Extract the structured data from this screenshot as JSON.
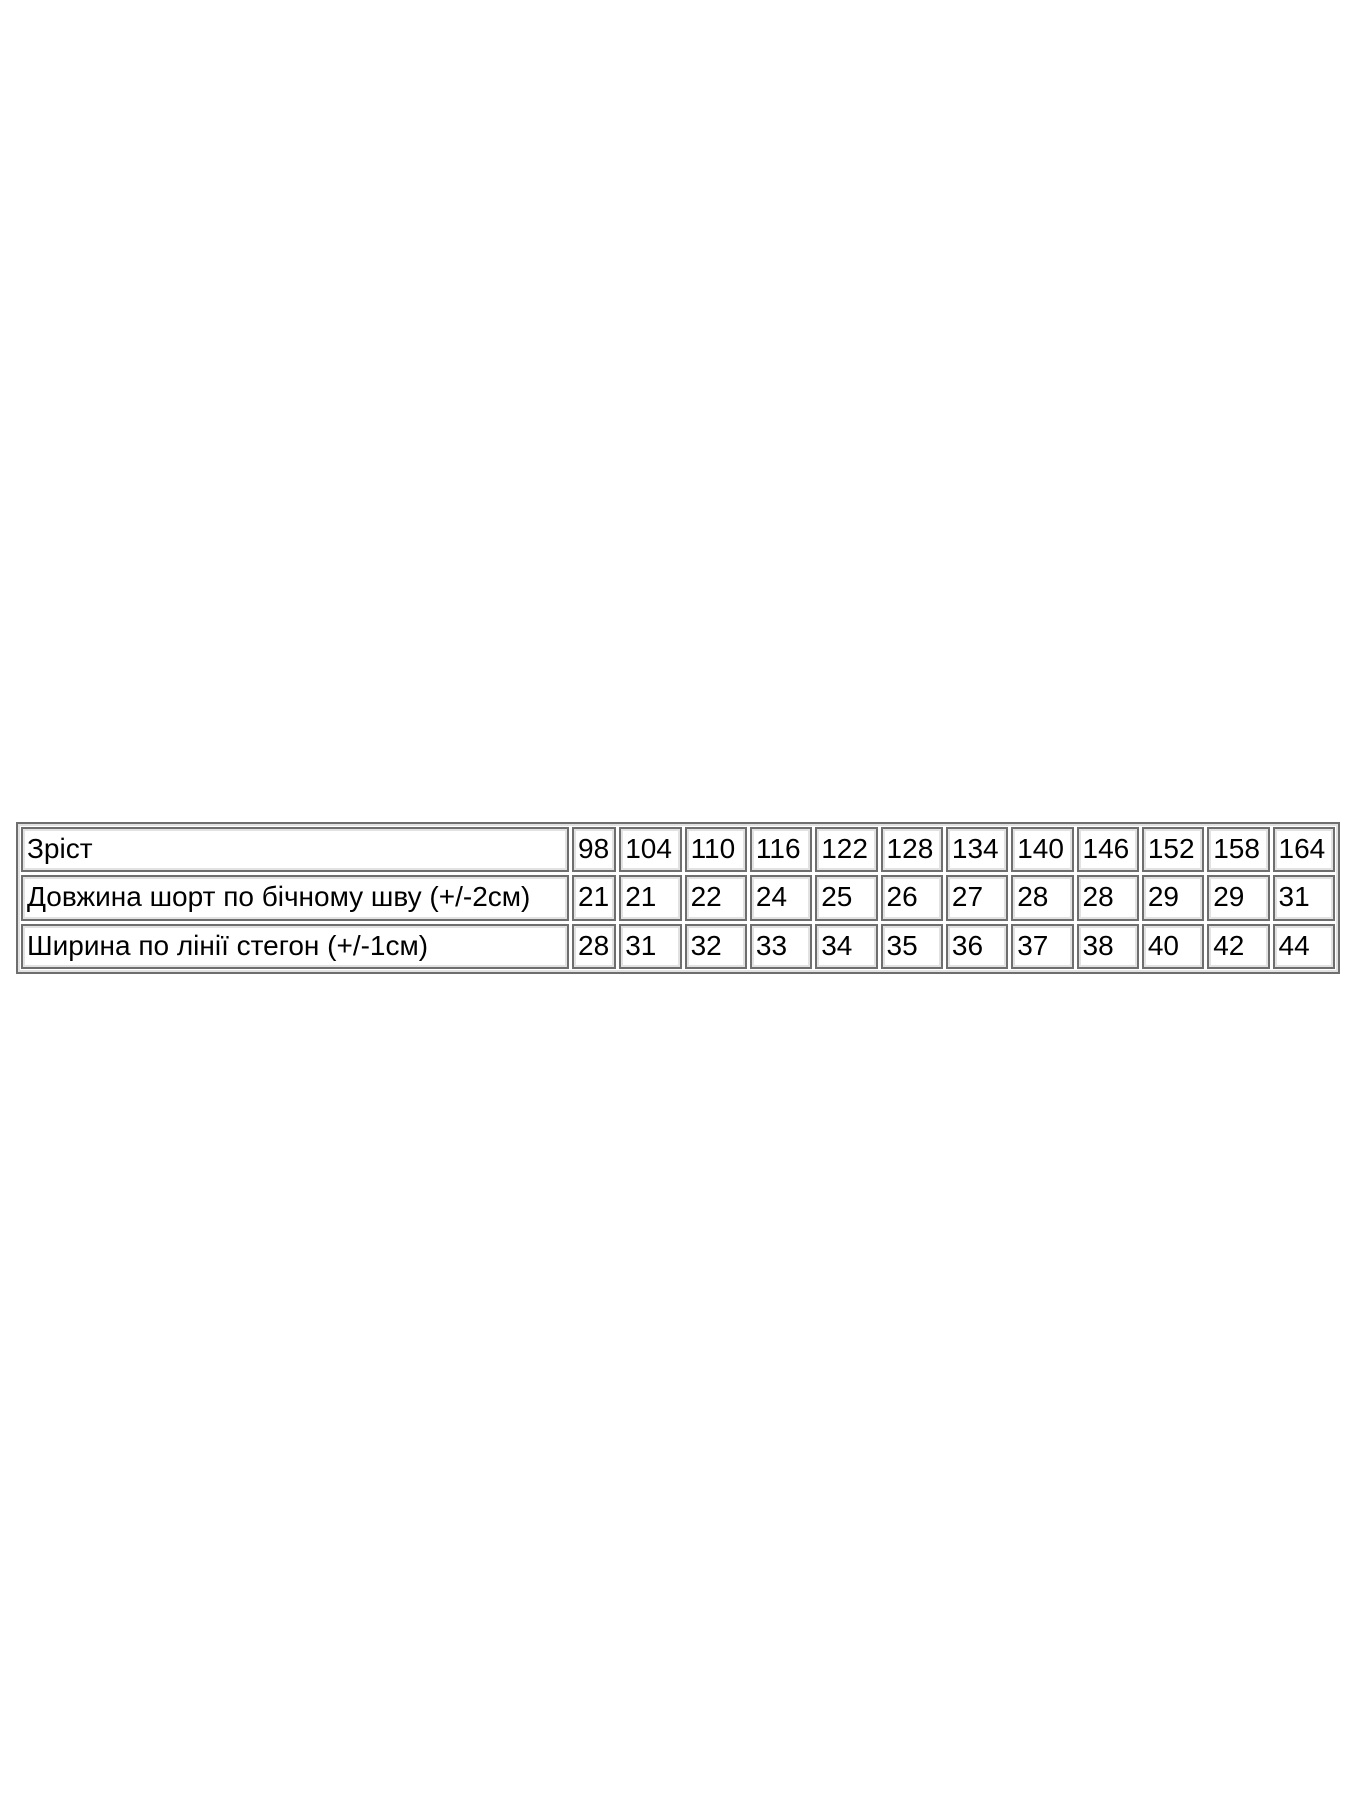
{
  "page": {
    "background": "#ffffff"
  },
  "size_table": {
    "border_dark": "#6e6e6e",
    "border_light": "#e2e2e2",
    "text_color": "#000000",
    "rows": [
      {
        "label": "Зріст",
        "values": [
          "98",
          "104",
          "110",
          "116",
          "122",
          "128",
          "134",
          "140",
          "146",
          "152",
          "158",
          "164"
        ]
      },
      {
        "label": "Довжина шорт по бічному шву (+/-2см)",
        "values": [
          "21",
          "21",
          "22",
          "24",
          "25",
          "26",
          "27",
          "28",
          "28",
          "29",
          "29",
          "31"
        ]
      },
      {
        "label": "Ширина по лінії стегон (+/-1см)",
        "values": [
          "28",
          "31",
          "32",
          "33",
          "34",
          "35",
          "36",
          "37",
          "38",
          "40",
          "42",
          "44"
        ]
      }
    ]
  }
}
